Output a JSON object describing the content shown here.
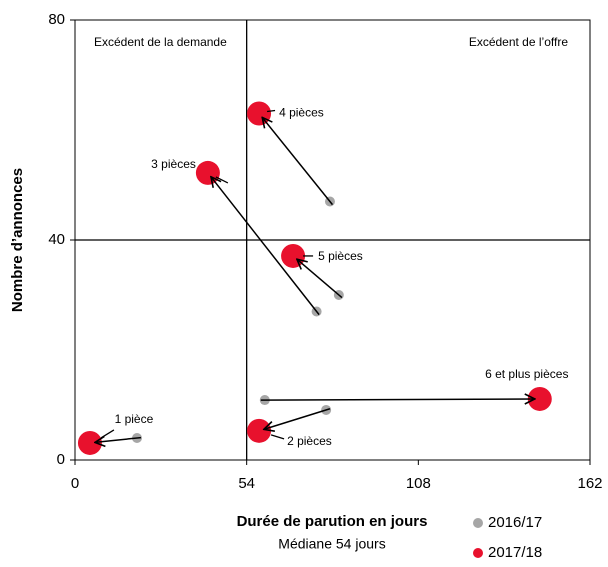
{
  "chart_data": {
    "type": "scatter",
    "categories": [
      "1 pièce",
      "2 pièces",
      "3 pièces",
      "4 pièces",
      "5 pièces",
      "6 et plus pièces"
    ],
    "series": [
      {
        "name": "2016/17",
        "color": "#a6a6a6",
        "x": [
          19.5,
          79,
          76,
          80.2,
          83,
          59.7
        ],
        "values": [
          4,
          9.1,
          27,
          47,
          30,
          10.9
        ]
      },
      {
        "name": "2017/18",
        "color": "#e8112d",
        "x": [
          4.7,
          57.9,
          41.8,
          57.9,
          68.6,
          146.2
        ],
        "values": [
          3.1,
          5.3,
          52.2,
          63,
          37.1,
          11.1
        ]
      }
    ],
    "xlim": [
      0,
      162
    ],
    "xticks": [
      0,
      54,
      108,
      162
    ],
    "ylim": [
      0,
      80
    ],
    "yticks": [
      0,
      40,
      80
    ],
    "x_median": 54,
    "y_median": 40,
    "x_label": "Durée de parution en jours",
    "x_sublabel": "Médiane 54 jours",
    "y_label": "Nombre d’annonces",
    "annotations": [
      "Excédent de la demande",
      "Excédent de l’offre"
    ]
  }
}
